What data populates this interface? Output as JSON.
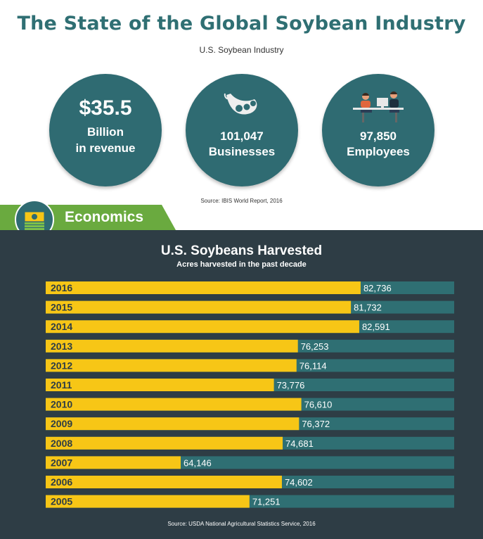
{
  "header": {
    "title": "The State of the Global Soybean Industry",
    "subtitle": "U.S. Soybean Industry"
  },
  "stats": [
    {
      "value": "$35.5",
      "line1": "Billion",
      "line2": "in revenue"
    },
    {
      "icon": "soybean-pod-icon",
      "line1": "101,047",
      "line2": "Businesses"
    },
    {
      "icon": "office-workers-icon",
      "line1": "97,850",
      "line2": "Employees"
    }
  ],
  "stats_source": "Source: IBIS World Report, 2016",
  "section": {
    "label": "Economics",
    "icon": "money-stack-icon"
  },
  "colors": {
    "teal": "#2f6b72",
    "bar": "#f7c616",
    "bar_track": "#2f6f73",
    "panel": "#2e3d45",
    "green": "#6aaa3f"
  },
  "chart_data": {
    "type": "bar",
    "orientation": "horizontal",
    "title": "U.S. Soybeans Harvested",
    "subtitle": "Acres harvested in the past decade",
    "categories": [
      "2016",
      "2015",
      "2014",
      "2013",
      "2012",
      "2011",
      "2010",
      "2009",
      "2008",
      "2007",
      "2006",
      "2005"
    ],
    "values": [
      82736,
      81732,
      82591,
      76253,
      76114,
      73776,
      76610,
      76372,
      74681,
      64146,
      74602,
      71251
    ],
    "value_labels": [
      "82,736",
      "81,732",
      "82,591",
      "76,253",
      "76,114",
      "73,776",
      "76,610",
      "76,372",
      "74,681",
      "64,146",
      "74,602",
      "71,251"
    ],
    "source": "Source: USDA National Agricultural Statistics Service, 2016"
  }
}
